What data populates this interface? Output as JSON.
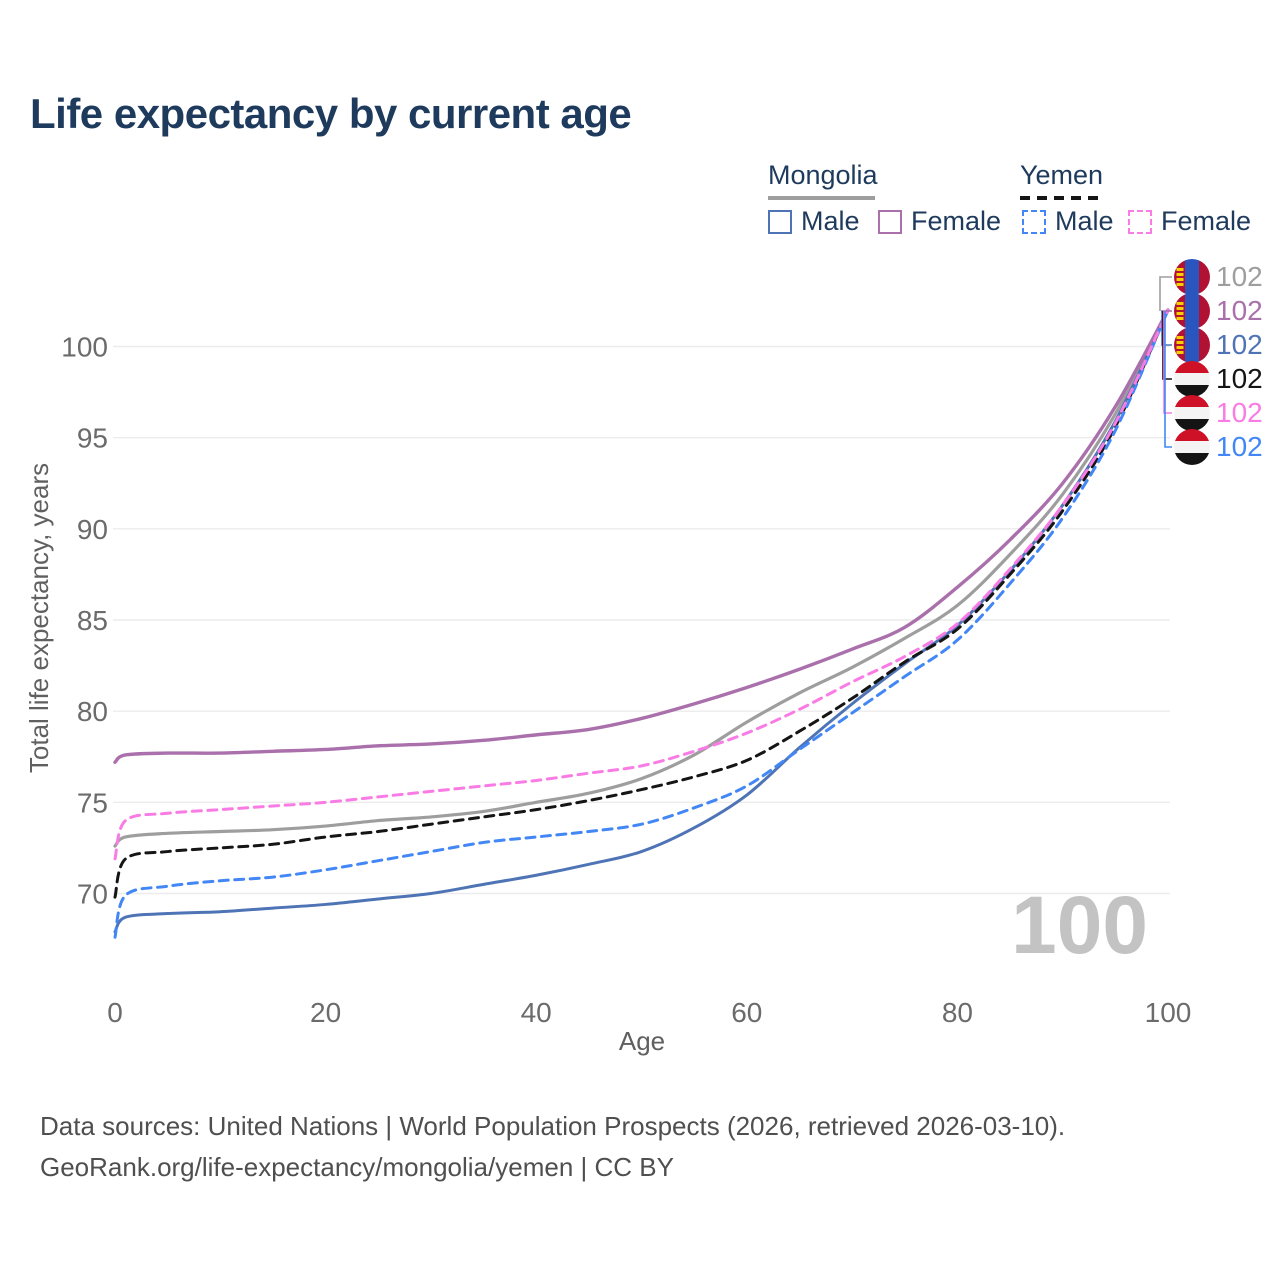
{
  "title": "Life expectancy by current age",
  "legend": {
    "groups": [
      {
        "name": "Mongolia",
        "line_style": "solid",
        "line_color": "#9e9e9e",
        "items": [
          {
            "label": "Male",
            "color": "#4f74b6",
            "dashed": false
          },
          {
            "label": "Female",
            "color": "#aa70ac",
            "dashed": false
          }
        ]
      },
      {
        "name": "Yemen",
        "line_style": "dashed",
        "line_color": "#151515",
        "items": [
          {
            "label": "Male",
            "color": "#4287f5",
            "dashed": true
          },
          {
            "label": "Female",
            "color": "#f97ce5",
            "dashed": true
          }
        ]
      }
    ]
  },
  "chart_data": {
    "type": "line",
    "title": "Life expectancy by current age",
    "xlabel": "Age",
    "ylabel": "Total life expectancy, years",
    "x_ticks": [
      0,
      20,
      40,
      60,
      80,
      100
    ],
    "y_ticks": [
      70,
      75,
      80,
      85,
      90,
      95,
      100
    ],
    "xlim": [
      0,
      100
    ],
    "ylim": [
      67,
      103
    ],
    "grid": "horizontal",
    "legend_position": "top-right",
    "watermark": "100",
    "x": [
      0,
      1,
      5,
      10,
      15,
      20,
      25,
      30,
      35,
      40,
      45,
      50,
      55,
      60,
      65,
      70,
      75,
      80,
      85,
      90,
      95,
      100
    ],
    "series": [
      {
        "name": "Mongolia",
        "country": "Mongolia",
        "sex": "Both",
        "color": "#9e9e9e",
        "dashed": false,
        "width": 3.2,
        "values": [
          72.6,
          73.1,
          73.3,
          73.4,
          73.5,
          73.7,
          74.0,
          74.2,
          74.5,
          75.0,
          75.5,
          76.3,
          77.6,
          79.4,
          81.0,
          82.4,
          84.0,
          85.8,
          88.6,
          91.9,
          96.3,
          102
        ]
      },
      {
        "name": "Mongolia Male",
        "country": "Mongolia",
        "sex": "Male",
        "color": "#4f74b6",
        "dashed": false,
        "width": 3.0,
        "values": [
          67.9,
          68.7,
          68.9,
          69.0,
          69.2,
          69.4,
          69.7,
          70.0,
          70.5,
          71.0,
          71.6,
          72.3,
          73.6,
          75.4,
          78.0,
          80.4,
          82.6,
          84.7,
          87.7,
          91.3,
          95.9,
          102
        ]
      },
      {
        "name": "Mongolia Female",
        "country": "Mongolia",
        "sex": "Female",
        "color": "#aa70ac",
        "dashed": false,
        "width": 3.4,
        "values": [
          77.2,
          77.6,
          77.7,
          77.7,
          77.8,
          77.9,
          78.1,
          78.2,
          78.4,
          78.7,
          79.0,
          79.6,
          80.4,
          81.3,
          82.3,
          83.4,
          84.6,
          86.8,
          89.4,
          92.5,
          96.7,
          102
        ]
      },
      {
        "name": "Yemen",
        "country": "Yemen",
        "sex": "Both",
        "color": "#151515",
        "dashed": true,
        "width": 3.0,
        "values": [
          69.8,
          71.9,
          72.3,
          72.5,
          72.7,
          73.1,
          73.4,
          73.8,
          74.2,
          74.6,
          75.1,
          75.7,
          76.4,
          77.3,
          78.9,
          80.7,
          82.7,
          84.5,
          87.5,
          91.0,
          95.6,
          102
        ]
      },
      {
        "name": "Yemen Male",
        "country": "Yemen",
        "sex": "Male",
        "color": "#4287f5",
        "dashed": true,
        "width": 3.0,
        "values": [
          67.6,
          69.9,
          70.4,
          70.7,
          70.9,
          71.3,
          71.8,
          72.3,
          72.8,
          73.1,
          73.4,
          73.8,
          74.7,
          75.9,
          77.9,
          79.9,
          81.9,
          83.9,
          87.0,
          90.6,
          95.4,
          102
        ]
      },
      {
        "name": "Yemen Female",
        "country": "Yemen",
        "sex": "Female",
        "color": "#f97ce5",
        "dashed": true,
        "width": 3.0,
        "values": [
          71.9,
          74.0,
          74.4,
          74.6,
          74.8,
          75.0,
          75.3,
          75.6,
          75.9,
          76.2,
          76.6,
          77.0,
          77.8,
          78.8,
          80.1,
          81.6,
          83.0,
          84.8,
          87.8,
          91.3,
          95.8,
          102
        ]
      }
    ]
  },
  "end_labels": [
    {
      "value": "102",
      "color": "#9e9e9e",
      "flag": "mongolia",
      "series": "Mongolia"
    },
    {
      "value": "102",
      "color": "#aa70ac",
      "flag": "mongolia",
      "series": "Mongolia Female"
    },
    {
      "value": "102",
      "color": "#4f74b6",
      "flag": "mongolia",
      "series": "Mongolia Male"
    },
    {
      "value": "102",
      "color": "#151515",
      "flag": "yemen",
      "series": "Yemen"
    },
    {
      "value": "102",
      "color": "#f97ce5",
      "flag": "yemen",
      "series": "Yemen Female"
    },
    {
      "value": "102",
      "color": "#4287f5",
      "flag": "yemen",
      "series": "Yemen Male"
    }
  ],
  "footer": {
    "line1": "Data sources: United Nations | World Population Prospects (2026, retrieved 2026-03-10).",
    "line2": "GeoRank.org/life-expectancy/mongolia/yemen | CC BY"
  },
  "colors": {
    "title": "#1e3a5c",
    "tick_text": "#6b6b6b",
    "axis_title": "#606060",
    "gridline": "#ececec",
    "watermark": "#c3c3c3",
    "footer_text": "#4f4f4f"
  }
}
